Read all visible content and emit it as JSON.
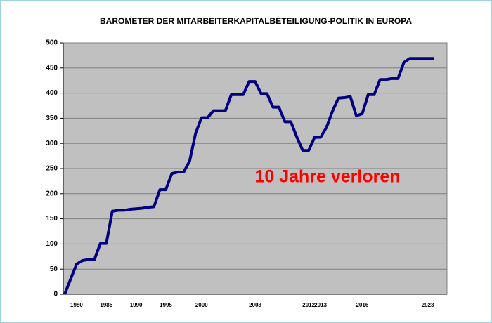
{
  "chart_data": {
    "type": "line",
    "title": "BAROMETER DER MITARBEITERKAPITALBETEILIGUNG-POLITIK IN EUROPA",
    "annotation": "10 Jahre verloren",
    "categories": [
      null,
      null,
      "1980",
      null,
      null,
      null,
      null,
      "1985",
      null,
      null,
      null,
      null,
      "1990",
      null,
      null,
      null,
      null,
      "1995",
      null,
      null,
      null,
      null,
      null,
      "2000",
      null,
      null,
      null,
      null,
      null,
      null,
      null,
      null,
      "2008",
      null,
      null,
      null,
      null,
      null,
      null,
      null,
      null,
      "2012",
      null,
      "2013",
      null,
      null,
      null,
      null,
      null,
      null,
      "2016",
      null,
      null,
      null,
      null,
      null,
      null,
      null,
      null,
      null,
      null,
      "2023",
      null
    ],
    "series": [
      {
        "name": "Barometer",
        "color": "#000080",
        "values": [
          0,
          30,
          60,
          67,
          69,
          69,
          101,
          101,
          165,
          167,
          167,
          169,
          170,
          171,
          173,
          174,
          208,
          208,
          240,
          243,
          243,
          265,
          320,
          351,
          351,
          365,
          365,
          365,
          397,
          397,
          397,
          423,
          423,
          399,
          399,
          372,
          372,
          343,
          343,
          313,
          286,
          286,
          312,
          312,
          332,
          364,
          390,
          391,
          393,
          355,
          359,
          397,
          397,
          427,
          427,
          429,
          429,
          461,
          469,
          469,
          469,
          469,
          469
        ]
      }
    ],
    "ylim": [
      0,
      500
    ],
    "yticks": [
      0,
      50,
      100,
      150,
      200,
      250,
      300,
      350,
      400,
      450,
      500
    ],
    "grid": true,
    "plot_background": "#c0c0c0",
    "annotation_color": "#ff0000"
  }
}
